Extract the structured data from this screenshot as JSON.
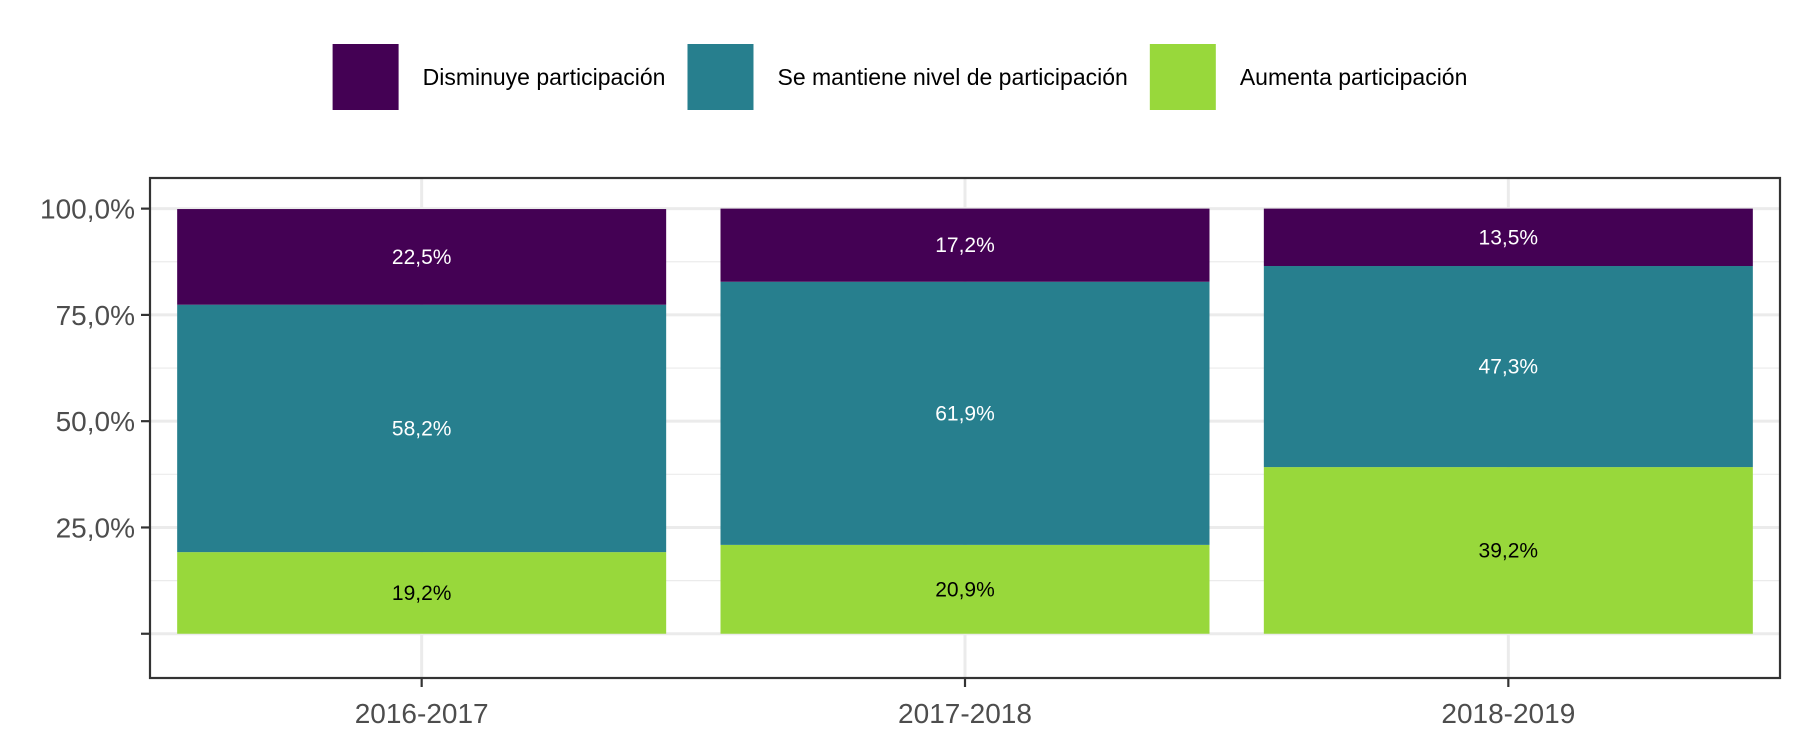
{
  "chart_data": {
    "type": "bar",
    "stacked": true,
    "title": "",
    "xlabel": "",
    "ylabel": "",
    "categories": [
      "2016-2017",
      "2017-2018",
      "2018-2019"
    ],
    "series": [
      {
        "name": "Aumenta participación",
        "color": "#98d83b",
        "label_color": "#000000",
        "values": [
          19.2,
          20.9,
          39.2
        ]
      },
      {
        "name": "Se mantiene nivel de participación",
        "color": "#277f8e",
        "label_color": "#ffffff",
        "values": [
          58.2,
          61.9,
          47.3
        ]
      },
      {
        "name": "Disminuye participación",
        "color": "#440154",
        "label_color": "#ffffff",
        "values": [
          22.5,
          17.2,
          13.5
        ]
      }
    ],
    "legend_order": [
      "Disminuye participación",
      "Se mantiene nivel de participación",
      "Aumenta participación"
    ],
    "legend_position": "top",
    "ylim": [
      0,
      100
    ],
    "yticks": [
      {
        "value": 0,
        "label": ""
      },
      {
        "value": 25,
        "label": "25,0%"
      },
      {
        "value": 50,
        "label": "50,0%"
      },
      {
        "value": 75,
        "label": "75,0%"
      },
      {
        "value": 100,
        "label": "100,0%"
      }
    ],
    "grid": true,
    "data_labels": true
  }
}
